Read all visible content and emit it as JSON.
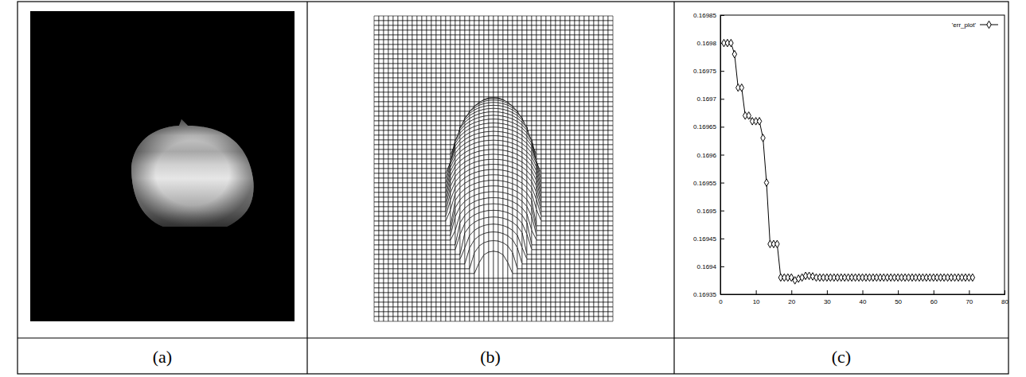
{
  "chart_data": [
    {
      "type": "image",
      "title": "(a)"
    },
    {
      "type": "mesh",
      "title": "(b)"
    },
    {
      "type": "line",
      "title": "(c)",
      "legend": "top-right",
      "grid": false,
      "x": [
        1,
        2,
        3,
        4,
        5,
        6,
        7,
        8,
        9,
        10,
        11,
        12,
        13,
        14,
        15,
        16,
        17,
        18,
        19,
        20,
        21,
        22,
        23,
        24,
        25,
        26,
        27,
        28,
        29,
        30,
        31,
        32,
        33,
        34,
        35,
        36,
        37,
        38,
        39,
        40,
        41,
        42,
        43,
        44,
        45,
        46,
        47,
        48,
        49,
        50,
        51,
        52,
        53,
        54,
        55,
        56,
        57,
        58,
        59,
        60,
        61,
        62,
        63,
        64,
        65,
        66,
        67,
        68,
        69,
        70,
        71
      ],
      "series": [
        {
          "name": "'err_plot'",
          "color": "#000000",
          "marker": "diamond",
          "line_style": "solid",
          "values": [
            0.1698,
            0.1698,
            0.1698,
            0.16978,
            0.16972,
            0.16972,
            0.16967,
            0.16967,
            0.16966,
            0.16966,
            0.16966,
            0.16963,
            0.16955,
            0.16944,
            0.16944,
            0.16944,
            0.16938,
            0.16938,
            0.16938,
            0.16938,
            0.169375,
            0.169378,
            0.16938,
            0.169383,
            0.169383,
            0.169382,
            0.16938,
            0.16938,
            0.16938,
            0.16938,
            0.16938,
            0.16938,
            0.16938,
            0.16938,
            0.16938,
            0.16938,
            0.16938,
            0.16938,
            0.16938,
            0.16938,
            0.16938,
            0.16938,
            0.16938,
            0.16938,
            0.16938,
            0.16938,
            0.16938,
            0.16938,
            0.16938,
            0.16938,
            0.16938,
            0.16938,
            0.16938,
            0.16938,
            0.16938,
            0.16938,
            0.16938,
            0.16938,
            0.16938,
            0.16938,
            0.16938,
            0.16938,
            0.16938,
            0.16938,
            0.16938,
            0.16938,
            0.16938,
            0.16938,
            0.16938,
            0.16938,
            0.16938
          ]
        }
      ],
      "xlim": [
        0,
        80
      ],
      "xticks": [
        0,
        10,
        20,
        30,
        40,
        50,
        60,
        70,
        80
      ],
      "ylim": [
        0.16935,
        0.16985
      ],
      "yticks": [
        0.16935,
        0.1694,
        0.16945,
        0.1695,
        0.16955,
        0.1696,
        0.16965,
        0.1697,
        0.16975,
        0.1698,
        0.16985
      ]
    }
  ]
}
